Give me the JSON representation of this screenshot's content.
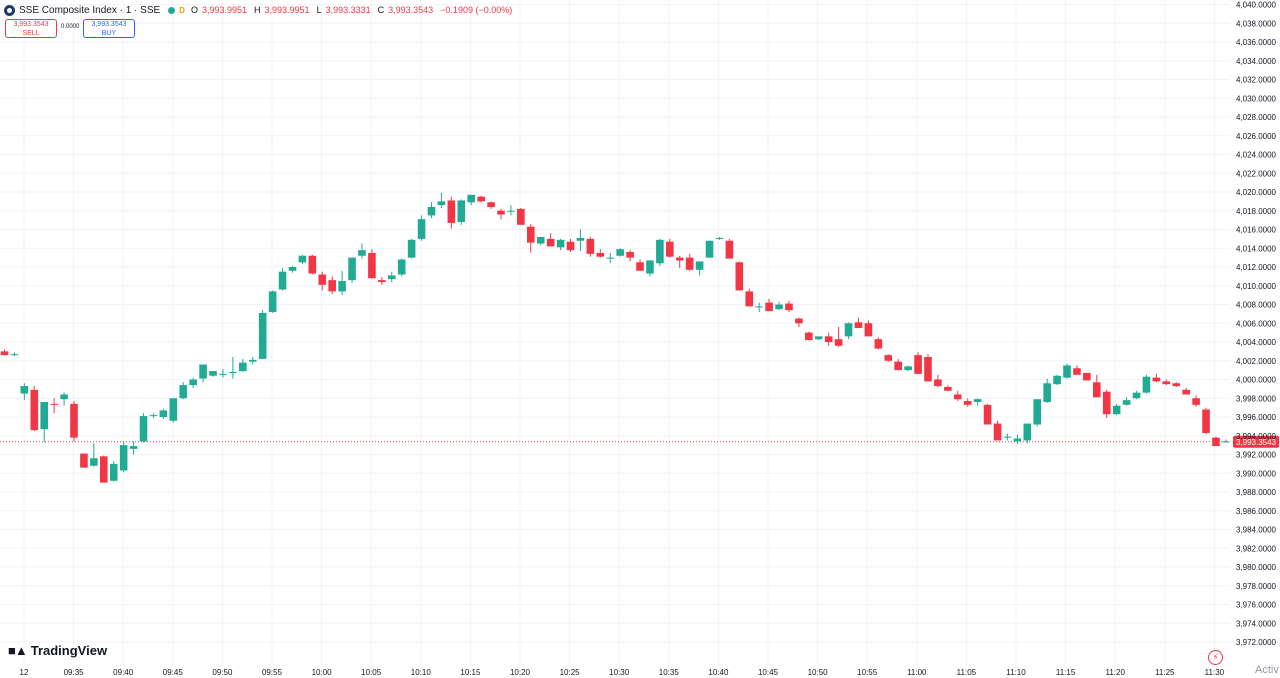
{
  "header": {
    "symbol_title": "SSE Composite Index · 1 · SSE",
    "badge": "D",
    "ohlc": [
      {
        "k": "O",
        "v": "3,993.9951"
      },
      {
        "k": "H",
        "v": "3,993.9951"
      },
      {
        "k": "L",
        "v": "3,993.3331"
      },
      {
        "k": "C",
        "v": "3,993.3543"
      }
    ],
    "change": "−0.1909 (−0.00%)"
  },
  "trade": {
    "sell_price": "3,993.3543",
    "sell_label": "SELL",
    "spread": "0.0000",
    "buy_price": "3,993.3543",
    "buy_label": "BUY"
  },
  "branding": {
    "logo_text": "TradingView",
    "watermark": "Activ"
  },
  "colors": {
    "up": "#22ab94",
    "down": "#f23645",
    "grid": "#f0f3fa"
  },
  "icons": {
    "symbol": "sse-logo-icon",
    "lightning": "lightning-icon",
    "tv": "tradingview-logo-icon"
  },
  "chart_data": {
    "type": "candlestick",
    "interval": "1 minute",
    "ylim": [
      3971,
      4040
    ],
    "y_ticks": [
      "4,040.0000",
      "4,038.0000",
      "4,036.0000",
      "4,034.0000",
      "4,032.0000",
      "4,030.0000",
      "4,028.0000",
      "4,026.0000",
      "4,024.0000",
      "4,022.0000",
      "4,020.0000",
      "4,018.0000",
      "4,016.0000",
      "4,014.0000",
      "4,012.0000",
      "4,010.0000",
      "4,008.0000",
      "4,006.0000",
      "4,004.0000",
      "4,002.0000",
      "4,000.0000",
      "3,998.0000",
      "3,996.0000",
      "3,994.0000",
      "3,992.0000",
      "3,990.0000",
      "3,988.0000",
      "3,986.0000",
      "3,984.0000",
      "3,982.0000",
      "3,980.0000",
      "3,978.0000",
      "3,976.0000",
      "3,974.0000",
      "3,972.0000"
    ],
    "x_ticks": [
      "12",
      "09:35",
      "09:40",
      "09:45",
      "09:50",
      "09:55",
      "10:00",
      "10:05",
      "10:10",
      "10:15",
      "10:20",
      "10:25",
      "10:30",
      "10:35",
      "10:40",
      "10:45",
      "10:50",
      "10:55",
      "11:00",
      "11:05",
      "11:10",
      "11:15",
      "11:20",
      "11:25",
      "11:30"
    ],
    "last_price": 3993.3543,
    "last_price_label": "3,993.3543",
    "candles": [
      [
        4003.0,
        4003.2,
        4002.6,
        4002.6
      ],
      [
        4002.7,
        4002.9,
        4002.5,
        4002.7
      ],
      [
        3998.5,
        3999.6,
        3997.8,
        3999.3
      ],
      [
        3998.9,
        3999.3,
        3994.5,
        3994.6
      ],
      [
        3994.7,
        3997.5,
        3993.3,
        3997.6
      ],
      [
        3997.4,
        3998.0,
        3996.4,
        3997.3
      ],
      [
        3997.9,
        3998.6,
        3997.2,
        3998.4
      ],
      [
        3997.4,
        3997.7,
        3993.4,
        3993.8
      ],
      [
        3992.1,
        3992.1,
        3990.6,
        3990.6
      ],
      [
        3990.8,
        3993.2,
        3990.7,
        3991.6
      ],
      [
        3991.8,
        3991.9,
        3989.0,
        3989.0
      ],
      [
        3989.2,
        3991.3,
        3989.1,
        3991.0
      ],
      [
        3990.3,
        3993.4,
        3990.1,
        3993.0
      ],
      [
        3992.6,
        3993.4,
        3992.0,
        3992.9
      ],
      [
        3993.4,
        3996.4,
        3993.3,
        3996.1
      ],
      [
        3996.1,
        3996.4,
        3995.9,
        3996.2
      ],
      [
        3996.0,
        3996.9,
        3995.8,
        3996.7
      ],
      [
        3995.6,
        3998.0,
        3995.4,
        3998.0
      ],
      [
        3998.0,
        3999.7,
        3997.9,
        3999.4
      ],
      [
        3999.4,
        4000.2,
        3999.1,
        4000.0
      ],
      [
        4000.1,
        4001.6,
        3999.7,
        4001.6
      ],
      [
        4000.4,
        4000.9,
        4000.3,
        4000.9
      ],
      [
        4000.6,
        4001.1,
        4000.2,
        4000.6
      ],
      [
        4000.7,
        4002.4,
        4000.1,
        4000.8
      ],
      [
        4000.9,
        4002.2,
        4000.8,
        4001.8
      ],
      [
        4001.9,
        4002.4,
        4001.6,
        4002.1
      ],
      [
        4002.2,
        4007.4,
        4002.2,
        4007.1
      ],
      [
        4007.2,
        4009.5,
        4007.1,
        4009.4
      ],
      [
        4009.6,
        4011.9,
        4009.5,
        4011.5
      ],
      [
        4011.6,
        4012.1,
        4011.4,
        4012.0
      ],
      [
        4012.5,
        4013.3,
        4012.3,
        4013.2
      ],
      [
        4013.2,
        4013.3,
        4011.2,
        4011.3
      ],
      [
        4011.2,
        4011.5,
        4009.5,
        4010.1
      ],
      [
        4010.6,
        4011.0,
        4009.1,
        4009.4
      ],
      [
        4009.4,
        4011.6,
        4009.0,
        4010.5
      ],
      [
        4010.6,
        4013.0,
        4010.3,
        4013.0
      ],
      [
        4013.2,
        4014.5,
        4012.9,
        4013.8
      ],
      [
        4013.5,
        4013.9,
        4010.8,
        4010.8
      ],
      [
        4010.6,
        4010.9,
        4010.1,
        4010.4
      ],
      [
        4010.7,
        4011.5,
        4010.4,
        4011.1
      ],
      [
        4011.2,
        4012.9,
        4011.0,
        4012.8
      ],
      [
        4013.0,
        4015.0,
        4012.9,
        4014.9
      ],
      [
        4015.0,
        4017.5,
        4014.8,
        4017.1
      ],
      [
        4017.5,
        4018.9,
        4017.2,
        4018.4
      ],
      [
        4018.6,
        4019.9,
        4018.3,
        4019.0
      ],
      [
        4019.1,
        4019.5,
        4016.1,
        4016.7
      ],
      [
        4016.8,
        4019.2,
        4016.5,
        4019.1
      ],
      [
        4018.9,
        4019.7,
        4018.6,
        4019.7
      ],
      [
        4019.5,
        4019.6,
        4018.9,
        4019.0
      ],
      [
        4018.9,
        4019.0,
        4018.2,
        4018.4
      ],
      [
        4018.0,
        4018.2,
        4017.1,
        4017.6
      ],
      [
        4018.0,
        4018.6,
        4017.5,
        4018.0
      ],
      [
        4018.2,
        4018.3,
        4016.5,
        4016.5
      ],
      [
        4016.3,
        4016.6,
        4013.5,
        4014.6
      ],
      [
        4014.5,
        4015.0,
        4014.3,
        4015.2
      ],
      [
        4015.0,
        4015.6,
        4014.2,
        4014.2
      ],
      [
        4014.1,
        4015.0,
        4013.8,
        4014.9
      ],
      [
        4014.7,
        4015.0,
        4013.6,
        4013.8
      ],
      [
        4014.8,
        4016.0,
        4013.7,
        4015.1
      ],
      [
        4015.0,
        4015.2,
        4013.1,
        4013.4
      ],
      [
        4013.5,
        4013.9,
        4013.0,
        4013.1
      ],
      [
        4012.9,
        4013.5,
        4012.4,
        4013.0
      ],
      [
        4013.2,
        4014.0,
        4013.1,
        4013.9
      ],
      [
        4013.6,
        4013.8,
        4012.6,
        4013.0
      ],
      [
        4012.5,
        4012.8,
        4011.6,
        4011.6
      ],
      [
        4011.3,
        4012.7,
        4011.0,
        4012.7
      ],
      [
        4012.4,
        4015.0,
        4012.1,
        4014.9
      ],
      [
        4014.7,
        4015.0,
        4013.0,
        4013.1
      ],
      [
        4013.0,
        4013.2,
        4011.9,
        4012.7
      ],
      [
        4013.0,
        4013.4,
        4011.6,
        4011.7
      ],
      [
        4011.7,
        4012.5,
        4011.1,
        4012.6
      ],
      [
        4013.0,
        4014.8,
        4013.0,
        4014.8
      ],
      [
        4015.0,
        4015.2,
        4014.9,
        4015.1
      ],
      [
        4014.8,
        4015.0,
        4012.9,
        4012.9
      ],
      [
        4012.5,
        4012.6,
        4009.5,
        4009.5
      ],
      [
        4009.4,
        4009.7,
        4007.8,
        4007.8
      ],
      [
        4007.8,
        4008.2,
        4007.2,
        4007.8
      ],
      [
        4008.2,
        4008.6,
        4007.3,
        4007.3
      ],
      [
        4007.5,
        4008.3,
        4007.4,
        4008.0
      ],
      [
        4008.1,
        4008.4,
        4007.2,
        4007.4
      ],
      [
        4006.5,
        4006.6,
        4005.6,
        4006.0
      ],
      [
        4005.0,
        4005.1,
        4004.2,
        4004.2
      ],
      [
        4004.3,
        4004.6,
        4004.2,
        4004.6
      ],
      [
        4004.6,
        4005.0,
        4003.6,
        4004.0
      ],
      [
        4004.3,
        4005.6,
        4003.5,
        4003.6
      ],
      [
        4004.6,
        4006.1,
        4004.3,
        4006.0
      ],
      [
        4006.1,
        4006.6,
        4005.5,
        4005.5
      ],
      [
        4006.0,
        4006.3,
        4004.6,
        4004.6
      ],
      [
        4004.3,
        4004.5,
        4003.2,
        4003.3
      ],
      [
        4002.6,
        4002.7,
        4001.9,
        4002.0
      ],
      [
        4001.9,
        4002.2,
        4001.0,
        4001.0
      ],
      [
        4001.0,
        4001.5,
        4000.9,
        4001.4
      ],
      [
        4002.6,
        4002.9,
        4000.6,
        4000.6
      ],
      [
        4002.4,
        4002.7,
        3999.9,
        3999.8
      ],
      [
        4000.0,
        4000.5,
        3999.2,
        3999.3
      ],
      [
        3999.2,
        3999.4,
        3998.8,
        3998.8
      ],
      [
        3998.4,
        3998.8,
        3997.7,
        3997.9
      ],
      [
        3997.7,
        3998.0,
        3997.1,
        3997.3
      ],
      [
        3997.6,
        3998.0,
        3997.2,
        3997.9
      ],
      [
        3997.3,
        3997.4,
        3995.2,
        3995.2
      ],
      [
        3995.3,
        3995.6,
        3993.5,
        3993.5
      ],
      [
        3993.8,
        3994.2,
        3993.5,
        3993.9
      ],
      [
        3993.4,
        3994.1,
        3993.1,
        3993.7
      ],
      [
        3993.5,
        3995.3,
        3993.2,
        3995.3
      ],
      [
        3995.2,
        3997.9,
        3995.0,
        3997.9
      ],
      [
        3997.6,
        4000.1,
        3997.5,
        3999.6
      ],
      [
        3999.5,
        4000.5,
        3999.4,
        4000.4
      ],
      [
        4000.2,
        4001.7,
        4000.1,
        4001.5
      ],
      [
        4001.2,
        4001.5,
        4000.5,
        4000.5
      ],
      [
        4000.7,
        4000.7,
        3999.9,
        3999.9
      ],
      [
        3999.7,
        4000.5,
        3998.1,
        3998.1
      ],
      [
        3998.7,
        3998.9,
        3995.9,
        3996.3
      ],
      [
        3996.3,
        3997.4,
        3996.2,
        3997.2
      ],
      [
        3997.3,
        3998.1,
        3997.2,
        3997.8
      ],
      [
        3998.0,
        3998.8,
        3997.9,
        3998.6
      ],
      [
        3998.6,
        4000.5,
        3998.5,
        4000.3
      ],
      [
        4000.2,
        4000.6,
        3999.7,
        3999.8
      ],
      [
        3999.8,
        4000.0,
        3999.4,
        3999.5
      ],
      [
        3999.6,
        3999.7,
        3999.2,
        3999.3
      ],
      [
        3998.9,
        3999.1,
        3998.4,
        3998.4
      ],
      [
        3998.0,
        3998.3,
        3997.1,
        3997.3
      ],
      [
        3996.8,
        3997.0,
        3994.2,
        3994.3
      ],
      [
        3993.8,
        3993.9,
        3992.9,
        3992.9
      ],
      [
        3993.3,
        3993.6,
        3993.3,
        3993.4
      ]
    ]
  }
}
